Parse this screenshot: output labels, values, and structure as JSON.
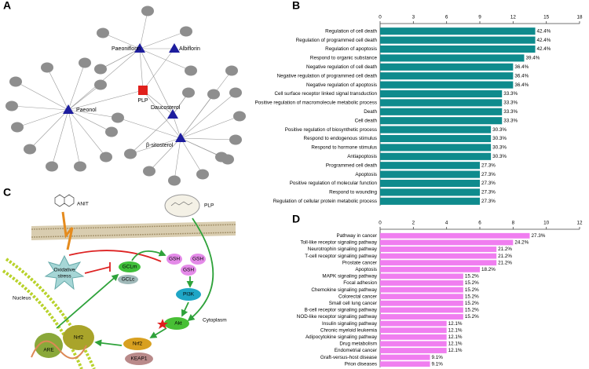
{
  "panels": {
    "a": "A",
    "b": "B",
    "c": "C",
    "d": "D"
  },
  "network": {
    "nodes": [
      {
        "label": "Paeoniflorin"
      },
      {
        "label": "Albiflorin"
      },
      {
        "label": "PLP"
      },
      {
        "label": "Paeonol"
      },
      {
        "label": "Daucosterol"
      },
      {
        "label": "β-sitosterol"
      }
    ]
  },
  "pathway": {
    "labels": [
      "ANIT",
      "PLP",
      "Oxidative",
      "stress",
      "GCLm",
      "GCLc",
      "GSH",
      "GSH",
      "GSH",
      "PI3K",
      "Akt",
      "Nrf2",
      "KEAP1",
      "Nucleus",
      "ARE",
      "Nrf2",
      "Cytoplasm"
    ]
  },
  "chart_data": [
    {
      "type": "bar",
      "orientation": "horizontal",
      "color": "#0f8b8d",
      "categories": [
        "Regulation of cell death",
        "Regulation of programmed cell death",
        "Regulation of apoptosis",
        "Respond to organic substance",
        "Negative regulation of cell death",
        "Negative regulation of programmed cell death",
        "Negative regulation of apoptosis",
        "Cell surface receptor linked signal transduction",
        "Positive regulation of macromolecule metabolic process",
        "Death",
        "Cell death",
        "Positive regulation of biosynthetic process",
        "Respond to endogenous stimulus",
        "Respond to hormone stimulus",
        "Antiapoptosis",
        "Programmed cell death",
        "Apoptosis",
        "Positive regulation of molecular function",
        "Respond to wounding",
        "Regulation of cellular protein metabolic process"
      ],
      "values": [
        14,
        14,
        14,
        13,
        12,
        12,
        12,
        11,
        11,
        11,
        11,
        10,
        10,
        10,
        10,
        9,
        9,
        9,
        9,
        9
      ],
      "value_labels": [
        "42.4%",
        "42.4%",
        "42.4%",
        "39.4%",
        "36.4%",
        "36.4%",
        "36.4%",
        "33.3%",
        "33.3%",
        "33.3%",
        "33.3%",
        "30.3%",
        "30.3%",
        "30.3%",
        "30.3%",
        "27.3%",
        "27.3%",
        "27.3%",
        "27.3%",
        "27.3%"
      ],
      "xlim": [
        0,
        18
      ],
      "xticks": [
        0,
        3,
        6,
        9,
        12,
        15,
        18
      ]
    },
    {
      "type": "bar",
      "orientation": "horizontal",
      "color": "#f07ef0",
      "categories": [
        "Pathway in cancer",
        "Toll-like receptor signaling pathway",
        "Neurotrophin signaling pathway",
        "T-cell receptor signaling pathway",
        "Prostate cancer",
        "Apoptosis",
        "MAPK signaling pathway",
        "Focal adhesion",
        "Chemokine signaling pathway",
        "Colorectal cancer",
        "Small cell lung cancer",
        "B-cell receptor signaling pathway",
        "NOD-like receptor signaling pathway",
        "Insulin signaling pathway",
        "Chronic myeloid leukemia",
        "Adipocytokine signaling pathway",
        "Drug metabolism",
        "Endometrial cancer",
        "Graft-versus-host disease",
        "Prion diseases"
      ],
      "values": [
        9,
        8,
        7,
        7,
        7,
        6,
        5,
        5,
        5,
        5,
        5,
        5,
        5,
        4,
        4,
        4,
        4,
        4,
        3,
        3
      ],
      "value_labels": [
        "27.3%",
        "24.2%",
        "21.2%",
        "21.2%",
        "21.2%",
        "18.2%",
        "15.2%",
        "15.2%",
        "15.2%",
        "15.2%",
        "15.2%",
        "15.2%",
        "15.2%",
        "12.1%",
        "12.1%",
        "12.1%",
        "12.1%",
        "12.1%",
        "9.1%",
        "9.1%"
      ],
      "xlim": [
        0,
        12
      ],
      "xticks": [
        0,
        2,
        4,
        6,
        8,
        10,
        12
      ]
    }
  ]
}
